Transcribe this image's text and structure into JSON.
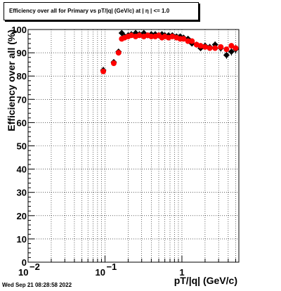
{
  "title": "Efficiency over all for Primary vs pT/|q| (GeV/c) at |  η | <= 1.0",
  "timestamp": "Wed Sep 21 08:28:58 2022",
  "chart_data": {
    "type": "scatter",
    "xlabel": "pT/|q| (GeV/c)",
    "ylabel": "Efficiency over all (%)",
    "xscale": "log",
    "xlim": [
      0.01,
      5.5
    ],
    "ylim": [
      0,
      100
    ],
    "grid": true,
    "x_tick_labels": [
      {
        "value": 0.01,
        "base": "10",
        "exp": "−2"
      },
      {
        "value": 0.1,
        "base": "10",
        "exp": "−1"
      },
      {
        "value": 1,
        "base": "1",
        "exp": ""
      }
    ],
    "y_ticks": [
      0,
      10,
      20,
      30,
      40,
      50,
      60,
      70,
      80,
      90,
      100
    ],
    "series": [
      {
        "marker": "diamond",
        "color": "#000000",
        "x": [
          0.095,
          0.13,
          0.15,
          0.165,
          0.18,
          0.2,
          0.22,
          0.25,
          0.28,
          0.32,
          0.36,
          0.4,
          0.45,
          0.5,
          0.55,
          0.6,
          0.67,
          0.75,
          0.85,
          0.95,
          1.05,
          1.2,
          1.35,
          1.55,
          1.75,
          2.0,
          2.3,
          2.7,
          3.2,
          3.8,
          4.4,
          5.0
        ],
        "y": [
          82.5,
          86,
          90.5,
          98.5,
          97,
          97.5,
          98,
          98.5,
          98,
          98.5,
          97.5,
          98,
          98,
          97.5,
          98,
          97.5,
          97.5,
          97.5,
          97,
          97,
          96.5,
          96,
          94,
          93.5,
          92,
          93,
          92.5,
          93.5,
          92,
          89,
          90.5,
          91.5
        ],
        "y_err": [
          1.5,
          1.2,
          1.0,
          0.8,
          0.6,
          0.5,
          0.5,
          0.4,
          0.4,
          0.4,
          0.4,
          0.4,
          0.4,
          0.4,
          0.4,
          0.5,
          0.5,
          0.5,
          0.6,
          0.6,
          0.7,
          0.8,
          0.9,
          1.0,
          1.1,
          1.2,
          1.3,
          1.4,
          1.5,
          1.6,
          1.7,
          1.8
        ]
      },
      {
        "marker": "circle",
        "color": "#ff0000",
        "x": [
          0.095,
          0.13,
          0.15,
          0.165,
          0.18,
          0.2,
          0.22,
          0.25,
          0.28,
          0.32,
          0.36,
          0.4,
          0.45,
          0.5,
          0.55,
          0.6,
          0.67,
          0.75,
          0.85,
          0.95,
          1.05,
          1.2,
          1.35,
          1.55,
          1.75,
          2.0,
          2.3,
          2.7,
          3.2,
          3.8,
          4.4,
          5.0
        ],
        "y": [
          82,
          85.5,
          90,
          96,
          96.5,
          97,
          97.5,
          97,
          97.5,
          97,
          97.5,
          97,
          97,
          97.5,
          96.5,
          97,
          96.5,
          97,
          96.5,
          96,
          96,
          95,
          95,
          93.5,
          93,
          92.5,
          92,
          92,
          92.5,
          91.5,
          93,
          92
        ]
      }
    ]
  }
}
